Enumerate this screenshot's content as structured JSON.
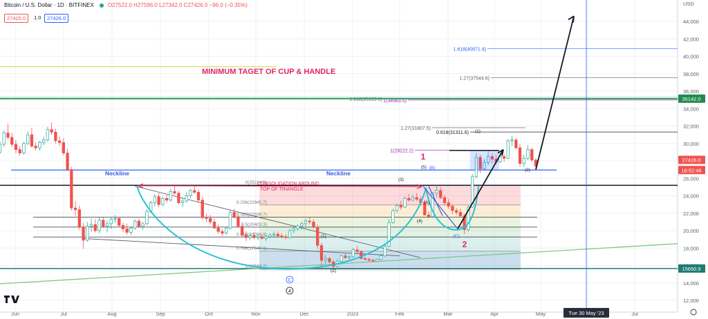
{
  "header": {
    "symbol": "Bitcoin / U.S. Dollar · 1D · BITFINEX",
    "ohlc": "O27522.0 H27596.0 L27342.0 C27426.0 −96.0 (−0.35%)",
    "sell_price": "27425.0",
    "spread": "1.0",
    "buy_price": "27426.0"
  },
  "colors": {
    "bull": "#26a69a",
    "bear": "#ef5350",
    "up_candle_body": "#ffffff",
    "annotation_red": "#e0245e",
    "annotation_blue": "#3b5bdb",
    "cup_curve": "#29c1d4",
    "support_green": "#2e9e5b"
  },
  "chart_data": {
    "type": "candlestick",
    "y_axis_label": "USD",
    "ylim": [
      11700,
      46500
    ],
    "y_ticks": [
      12000,
      14000,
      16000,
      18000,
      20000,
      22000,
      24000,
      26000,
      28000,
      30000,
      32000,
      34000,
      36000,
      38000,
      40000,
      42000,
      44000
    ],
    "x_ticks": [
      "Jun",
      "Jul",
      "Aug",
      "Sep",
      "Oct",
      "Nov",
      "Dec",
      "2023",
      "Feb",
      "Mar",
      "Apr",
      "May",
      "Jun",
      "Jul"
    ],
    "price_labels": [
      {
        "text": "35142.0",
        "style": "green"
      },
      {
        "text": "27426.0",
        "style": "red"
      },
      {
        "text": "18:52:46",
        "style": "red"
      },
      {
        "text": "15650.9",
        "style": "teal"
      }
    ],
    "crosshair_label": "Tue 30 May '23",
    "annotation_title": "MINIMUM TAGET OF CUP & HANDLE",
    "annotation_consolidation": [
      "CONSOLIDATION AROUND",
      "TOP OF TRIANGLE"
    ],
    "neckline_labels": [
      "Neckline",
      "Neckline"
    ],
    "horizontal_levels": [
      35142,
      27000,
      25200,
      15650
    ],
    "fib_retracement": {
      "levels": [
        {
          "label": "0(25214.5)",
          "value": 25214.5
        },
        {
          "label": "0.236(22945.7)",
          "value": 22945.7
        },
        {
          "label": "0.382(21539.7)",
          "value": 21539.7
        },
        {
          "label": "0.5(20403.3)",
          "value": 20403.3
        },
        {
          "label": "0.618(19266.9)",
          "value": 19266.9
        },
        {
          "label": "0.786(17649.1)",
          "value": 17649.1
        },
        {
          "label": "1(15588.2)",
          "value": 15588.2
        }
      ]
    },
    "fib_extension": {
      "levels": [
        {
          "label": "1.618(40871.4)",
          "value": 40871.4,
          "color": "#2962ff"
        },
        {
          "label": "1.27(37544.6)",
          "value": 37544.6,
          "color": "#5d606b"
        },
        {
          "label": "1.618(35139.6)",
          "value": 35139.6,
          "color": "#5d606b"
        },
        {
          "label": "1(34983.5)",
          "value": 34983.5,
          "color": "#9c27b0"
        },
        {
          "label": "1.27(31807.5)",
          "value": 31807.5,
          "color": "#5d606b"
        },
        {
          "label": "0.618(31311.6)",
          "value": 31311.6,
          "color": "#131722"
        },
        {
          "label": "1(29222.2)",
          "value": 29222.2,
          "color": "#9c27b0"
        }
      ]
    },
    "wave_labels": [
      "(1)",
      "(2)",
      "(3)",
      "(4)",
      "(5)",
      "(A)",
      "(B)",
      "(C)",
      "(1)",
      "(2)",
      "1",
      "2",
      "C",
      "4"
    ],
    "series": [
      {
        "name": "BTCUSD",
        "ohlc_daily_approx": [
          [
            29000,
            30200,
            28800,
            29900
          ],
          [
            29900,
            31500,
            29600,
            31200
          ],
          [
            31200,
            32300,
            30400,
            30700
          ],
          [
            30700,
            31200,
            29600,
            29900
          ],
          [
            29900,
            30400,
            28900,
            29300
          ],
          [
            29300,
            29700,
            28600,
            28900
          ],
          [
            28900,
            30200,
            28700,
            30000
          ],
          [
            30000,
            31400,
            29800,
            31000
          ],
          [
            31000,
            31800,
            29500,
            29700
          ],
          [
            29700,
            30100,
            29200,
            29500
          ],
          [
            29500,
            30300,
            29200,
            30100
          ],
          [
            30100,
            30800,
            29800,
            30400
          ],
          [
            30400,
            31900,
            30200,
            31600
          ],
          [
            31600,
            32400,
            31000,
            31300
          ],
          [
            31300,
            31700,
            30000,
            30300
          ],
          [
            30300,
            30800,
            29700,
            30100
          ],
          [
            30100,
            30600,
            28600,
            28900
          ],
          [
            28900,
            29400,
            26800,
            27000
          ],
          [
            27000,
            27300,
            22300,
            22600
          ],
          [
            22600,
            23400,
            21700,
            22400
          ],
          [
            22400,
            22900,
            20100,
            20400
          ],
          [
            20400,
            20900,
            17900,
            18900
          ],
          [
            18900,
            21000,
            18700,
            20500
          ],
          [
            20500,
            21400,
            19900,
            20700
          ],
          [
            20700,
            21300,
            19800,
            20000
          ],
          [
            20000,
            21600,
            19700,
            21200
          ],
          [
            21200,
            21500,
            20300,
            20500
          ],
          [
            20500,
            21200,
            19800,
            20800
          ],
          [
            20800,
            21600,
            20200,
            21300
          ],
          [
            21300,
            21800,
            20900,
            21400
          ],
          [
            21400,
            21600,
            20400,
            20600
          ],
          [
            20600,
            20900,
            19800,
            20200
          ],
          [
            20200,
            20800,
            19500,
            19800
          ],
          [
            19800,
            20500,
            19500,
            20300
          ],
          [
            20300,
            21300,
            20100,
            21100
          ],
          [
            21100,
            21400,
            20300,
            20500
          ],
          [
            20500,
            21000,
            20100,
            20800
          ],
          [
            20800,
            22500,
            20600,
            22200
          ],
          [
            22200,
            23400,
            22000,
            23200
          ],
          [
            23200,
            24200,
            22800,
            23900
          ],
          [
            23900,
            24300,
            22700,
            23000
          ],
          [
            23000,
            23900,
            22800,
            23700
          ],
          [
            23700,
            24100,
            23200,
            23500
          ],
          [
            23500,
            24800,
            23300,
            24500
          ],
          [
            24500,
            25200,
            24100,
            24300
          ],
          [
            24300,
            24600,
            23000,
            23200
          ],
          [
            23200,
            23800,
            22700,
            23400
          ],
          [
            23400,
            24400,
            23200,
            24000
          ],
          [
            24000,
            24800,
            23700,
            24600
          ],
          [
            24600,
            25100,
            24200,
            24400
          ],
          [
            24400,
            24700,
            23200,
            23500
          ],
          [
            23500,
            23900,
            21300,
            21500
          ],
          [
            21500,
            21900,
            21000,
            21400
          ],
          [
            21400,
            21800,
            20700,
            21000
          ],
          [
            21000,
            21400,
            20200,
            20300
          ],
          [
            20300,
            20700,
            19600,
            19900
          ],
          [
            19900,
            20200,
            19400,
            19700
          ],
          [
            19700,
            20500,
            19500,
            20300
          ],
          [
            20300,
            22400,
            20100,
            22100
          ],
          [
            22100,
            22500,
            21400,
            21600
          ],
          [
            21600,
            21900,
            20300,
            20500
          ],
          [
            20500,
            20800,
            19300,
            19500
          ],
          [
            19500,
            19900,
            18800,
            19200
          ],
          [
            19200,
            19700,
            18900,
            19400
          ],
          [
            19400,
            19800,
            19000,
            19200
          ],
          [
            19200,
            19500,
            18900,
            19300
          ],
          [
            19300,
            19600,
            19000,
            19100
          ],
          [
            19100,
            19500,
            18800,
            19300
          ],
          [
            19300,
            19700,
            19100,
            19500
          ],
          [
            19500,
            19900,
            19200,
            19600
          ],
          [
            19600,
            19900,
            19200,
            19400
          ],
          [
            19400,
            19700,
            19100,
            19300
          ],
          [
            19300,
            19600,
            19000,
            19200
          ],
          [
            19200,
            20200,
            19100,
            20000
          ],
          [
            20000,
            20500,
            19700,
            20200
          ],
          [
            20200,
            20700,
            20000,
            20500
          ],
          [
            20500,
            21000,
            20100,
            20800
          ],
          [
            20800,
            21400,
            20500,
            21100
          ],
          [
            21100,
            21500,
            20700,
            21000
          ],
          [
            21000,
            21300,
            20200,
            20400
          ],
          [
            20400,
            20700,
            17900,
            18300
          ],
          [
            18300,
            18600,
            15700,
            16600
          ],
          [
            16600,
            17200,
            16200,
            16800
          ],
          [
            16800,
            17000,
            16300,
            16400
          ],
          [
            16400,
            16700,
            15600,
            15900
          ],
          [
            15900,
            16700,
            15800,
            16500
          ],
          [
            16500,
            17200,
            16400,
            17100
          ],
          [
            17100,
            17400,
            16800,
            16900
          ],
          [
            16900,
            17100,
            16700,
            17000
          ],
          [
            17000,
            18000,
            16900,
            17800
          ],
          [
            17800,
            18300,
            17400,
            17600
          ],
          [
            17600,
            17700,
            16700,
            16800
          ],
          [
            16800,
            17000,
            16600,
            16700
          ],
          [
            16700,
            16900,
            16500,
            16600
          ],
          [
            16600,
            16800,
            16400,
            16500
          ],
          [
            16500,
            16800,
            16500,
            16700
          ],
          [
            16700,
            17300,
            16600,
            17100
          ],
          [
            17100,
            18400,
            17000,
            18200
          ],
          [
            18200,
            21300,
            18100,
            20900
          ],
          [
            20900,
            22500,
            20800,
            22300
          ],
          [
            22300,
            23100,
            22100,
            22900
          ],
          [
            22900,
            23400,
            22400,
            22700
          ],
          [
            22700,
            23900,
            22600,
            23700
          ],
          [
            23700,
            24200,
            23300,
            23500
          ],
          [
            23500,
            24100,
            23300,
            23800
          ],
          [
            23800,
            24300,
            23400,
            23600
          ],
          [
            23600,
            23900,
            22900,
            23200
          ],
          [
            23200,
            23500,
            21700,
            21800
          ],
          [
            21800,
            22200,
            21400,
            21600
          ],
          [
            21600,
            24400,
            21500,
            24300
          ],
          [
            24300,
            25200,
            23800,
            24600
          ],
          [
            24600,
            25000,
            23600,
            23800
          ],
          [
            23800,
            24100,
            22900,
            23200
          ],
          [
            23200,
            23600,
            22500,
            22800
          ],
          [
            22800,
            23000,
            21900,
            22300
          ],
          [
            22300,
            22600,
            21800,
            22100
          ],
          [
            22100,
            22500,
            21500,
            21700
          ],
          [
            21700,
            21900,
            19600,
            20100
          ],
          [
            20100,
            22900,
            19900,
            22700
          ],
          [
            22700,
            26500,
            22600,
            26200
          ],
          [
            26200,
            28900,
            26000,
            28400
          ],
          [
            28400,
            28700,
            26600,
            27100
          ],
          [
            27100,
            28200,
            26900,
            27800
          ],
          [
            27800,
            29100,
            27500,
            28500
          ],
          [
            28500,
            28900,
            27700,
            28200
          ],
          [
            28200,
            28700,
            27600,
            27900
          ],
          [
            27900,
            28900,
            27800,
            28500
          ],
          [
            28500,
            28800,
            27900,
            28300
          ],
          [
            28300,
            30500,
            28200,
            30300
          ],
          [
            30300,
            30900,
            29700,
            30400
          ],
          [
            30400,
            30600,
            29300,
            29500
          ],
          [
            29500,
            29900,
            27300,
            27700
          ],
          [
            27700,
            28700,
            27300,
            28300
          ],
          [
            28300,
            29800,
            28100,
            29300
          ],
          [
            29300,
            29500,
            27900,
            28100
          ],
          [
            28100,
            28300,
            26900,
            27400
          ]
        ]
      }
    ]
  }
}
